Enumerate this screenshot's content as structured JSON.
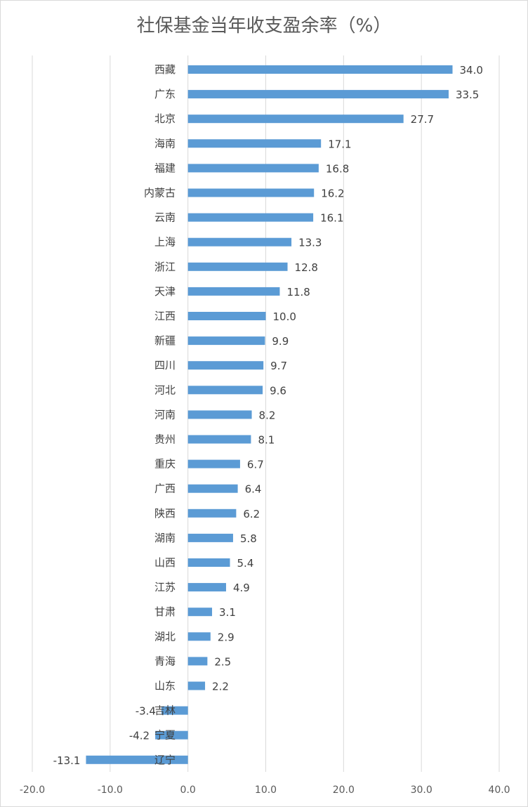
{
  "chart_data": {
    "type": "bar",
    "orientation": "horizontal",
    "title": "社保基金当年收支盈余率（%）",
    "categories": [
      "西藏",
      "广东",
      "北京",
      "海南",
      "福建",
      "内蒙古",
      "云南",
      "上海",
      "浙江",
      "天津",
      "江西",
      "新疆",
      "四川",
      "河北",
      "河南",
      "贵州",
      "重庆",
      "广西",
      "陕西",
      "湖南",
      "山西",
      "江苏",
      "甘肃",
      "湖北",
      "青海",
      "山东",
      "吉林",
      "宁夏",
      "辽宁"
    ],
    "values": [
      34.0,
      33.5,
      27.7,
      17.1,
      16.8,
      16.2,
      16.1,
      13.3,
      12.8,
      11.8,
      10.0,
      9.9,
      9.7,
      9.6,
      8.2,
      8.1,
      6.7,
      6.4,
      6.2,
      5.8,
      5.4,
      4.9,
      3.1,
      2.9,
      2.5,
      2.2,
      -3.4,
      -4.2,
      -13.1
    ],
    "value_labels": [
      "34.0",
      "33.5",
      "27.7",
      "17.1",
      "16.8",
      "16.2",
      "16.1",
      "13.3",
      "12.8",
      "11.8",
      "10.0",
      "9.9",
      "9.7",
      "9.6",
      "8.2",
      "8.1",
      "6.7",
      "6.4",
      "6.2",
      "5.8",
      "5.4",
      "4.9",
      "3.1",
      "2.9",
      "2.5",
      "2.2",
      "-3.4",
      "-4.2",
      "-13.1"
    ],
    "xlim": [
      -20,
      40
    ],
    "xticks": [
      -20,
      -10,
      0,
      10,
      20,
      30,
      40
    ],
    "xtick_labels": [
      "-20.0",
      "-10.0",
      "0.0",
      "10.0",
      "20.0",
      "30.0",
      "40.0"
    ],
    "grid": "vertical",
    "legend": "none",
    "xlabel": "",
    "ylabel": "",
    "bar_color": "#5b9bd5",
    "grid_color": "#d9d9d9"
  }
}
